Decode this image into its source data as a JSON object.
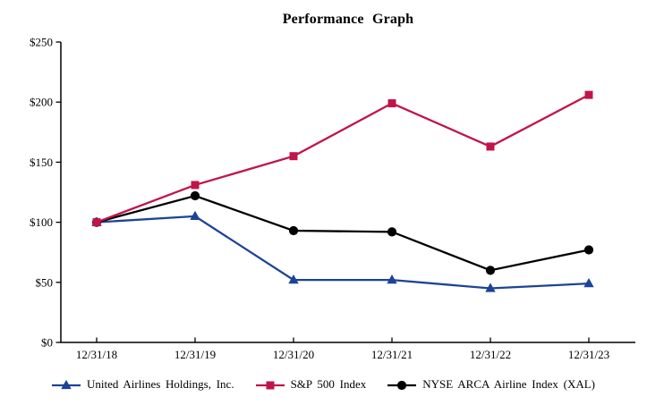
{
  "chart_data": {
    "type": "line",
    "title": "Performance Graph",
    "x_labels": [
      "12/31/18",
      "12/31/19",
      "12/31/20",
      "12/31/21",
      "12/31/22",
      "12/31/23"
    ],
    "y_tick_labels": [
      "$0",
      "$50",
      "$100",
      "$150",
      "$200",
      "$250"
    ],
    "y_tick_values": [
      0,
      50,
      100,
      150,
      200,
      250
    ],
    "ylim": [
      0,
      250
    ],
    "grid": false,
    "legend_position": "bottom",
    "axis_color": "#000000",
    "series": [
      {
        "name": "United Airlines Holdings, Inc.",
        "marker": "triangle",
        "color": "#1C4397",
        "values": [
          100,
          105,
          52,
          52,
          45,
          49
        ]
      },
      {
        "name": "NYSE ARCA Airline Index (XAL)",
        "marker": "circle",
        "color": "#000000",
        "values": [
          100,
          122,
          93,
          92,
          60,
          77
        ]
      },
      {
        "name": "S&P 500 Index",
        "marker": "square",
        "color": "#C1154A",
        "values": [
          100,
          131,
          155,
          199,
          163,
          206
        ]
      }
    ],
    "legend_order": [
      0,
      2,
      1
    ]
  }
}
